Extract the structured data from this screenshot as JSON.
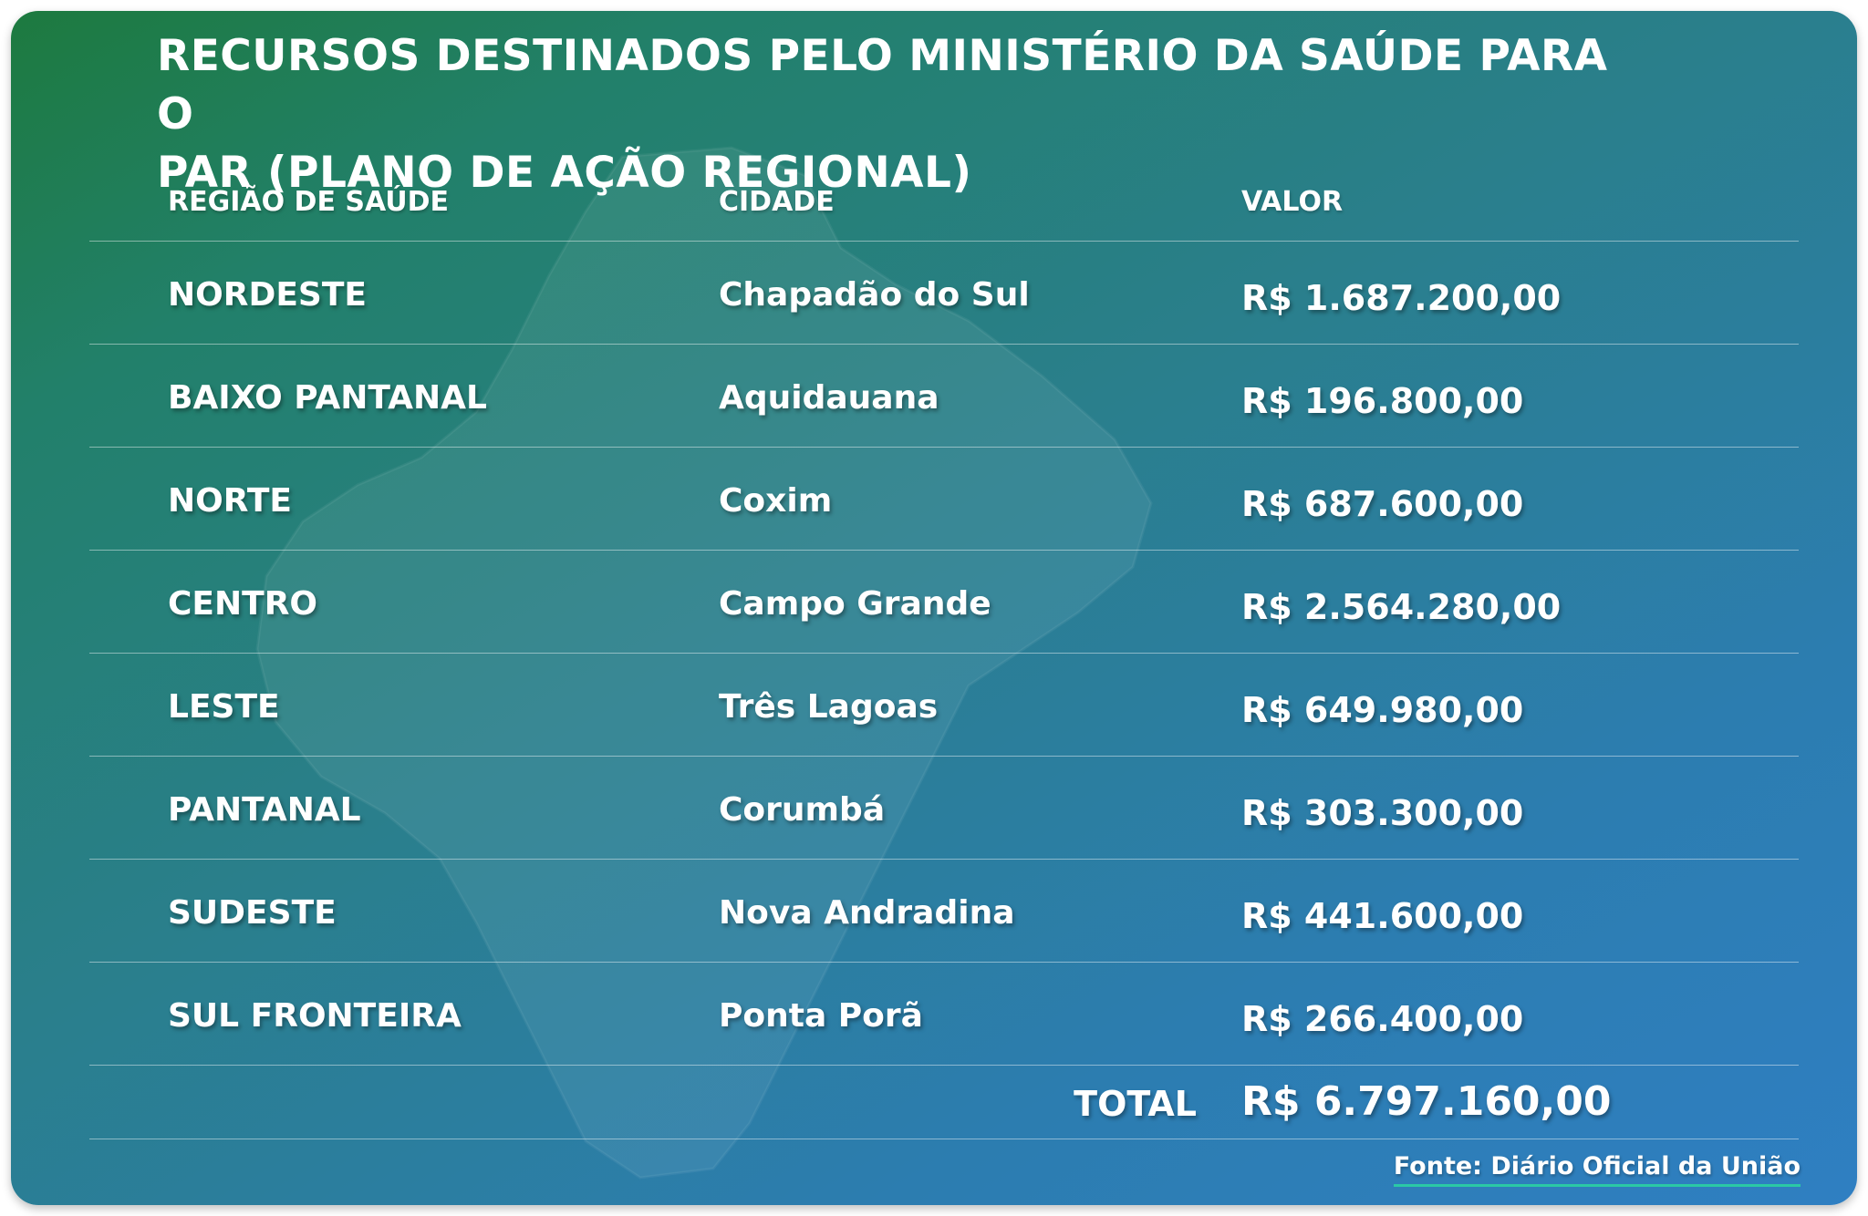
{
  "title": {
    "line1": "RECURSOS DESTINADOS PELO MINISTÉRIO DA SAÚDE PARA O",
    "line2": "PAR (PLANO DE AÇÃO REGIONAL)"
  },
  "table": {
    "columns": [
      "REGIÃO DE SAÚDE",
      "CIDADE",
      "VALOR"
    ],
    "rows": [
      {
        "region": "NORDESTE",
        "city": "Chapadão do Sul",
        "value": "R$ 1.687.200,00"
      },
      {
        "region": "BAIXO PANTANAL",
        "city": "Aquidauana",
        "value": "R$ 196.800,00"
      },
      {
        "region": "NORTE",
        "city": "Coxim",
        "value": "R$ 687.600,00"
      },
      {
        "region": "CENTRO",
        "city": "Campo Grande",
        "value": "R$ 2.564.280,00"
      },
      {
        "region": "LESTE",
        "city": "Três Lagoas",
        "value": "R$ 649.980,00"
      },
      {
        "region": "PANTANAL",
        "city": "Corumbá",
        "value": "R$ 303.300,00"
      },
      {
        "region": "SUDESTE",
        "city": "Nova Andradina",
        "value": "R$ 441.600,00"
      },
      {
        "region": "SUL FRONTEIRA",
        "city": "Ponta Porã",
        "value": "R$ 266.400,00"
      }
    ],
    "total_label": "TOTAL",
    "total_value": "R$ 6.797.160,00"
  },
  "source": "Fonte: Diário Oficial da União",
  "colors": {
    "gradient_start": "#1d7a3f",
    "gradient_end": "#2f7fc2",
    "source_underline": "#2bc8a5",
    "text": "#ffffff"
  }
}
